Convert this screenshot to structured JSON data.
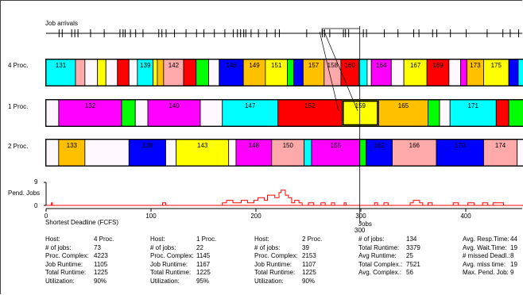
{
  "window": {
    "job_arrivals_label": "Job arrivals",
    "pend_jobs_label": "Pend. Jobs",
    "pend_y_max_label": "9",
    "pend_y_min_label": "0",
    "algorithm_label": "Shortest Deadline (FCFS)",
    "x_axis_unit_label": "Jobs",
    "cursor_value_label": "300"
  },
  "axis": {
    "ticks": [
      {
        "value": 0,
        "label": "0"
      },
      {
        "value": 100,
        "label": "100"
      },
      {
        "value": 200,
        "label": "200"
      },
      {
        "value": 300,
        "label": "300"
      },
      {
        "value": 400,
        "label": "400"
      }
    ],
    "view_range": [
      0,
      458
    ]
  },
  "arrivals": [
    12,
    15,
    24,
    27,
    30,
    42,
    55,
    70,
    73,
    75,
    80,
    85,
    92,
    107,
    110,
    114,
    122,
    133,
    143,
    150,
    160,
    170,
    178,
    182,
    185,
    188,
    190,
    195,
    202,
    210,
    218,
    222,
    248,
    263,
    265,
    270,
    283,
    285,
    288,
    302,
    305,
    322,
    335,
    350,
    355,
    368,
    372,
    385,
    400,
    420,
    435,
    442,
    450
  ],
  "selection": {
    "start": 291,
    "end": 297,
    "cursor": 299
  },
  "rows": [
    {
      "label": "4 Proc.",
      "jobs": [
        {
          "id": "131",
          "start": 0,
          "end": 28,
          "color": "#00ffff",
          "show_id": true
        },
        {
          "id": "",
          "start": 28,
          "end": 37,
          "color": "#ffaaaa",
          "show_id": false
        },
        {
          "id": "",
          "start": 37,
          "end": 49,
          "color": "#fff8ff",
          "show_id": false
        },
        {
          "id": "",
          "start": 49,
          "end": 57,
          "color": "#ffff00",
          "show_id": false
        },
        {
          "id": "",
          "start": 57,
          "end": 68,
          "color": "#fff8ff",
          "show_id": false
        },
        {
          "id": "",
          "start": 68,
          "end": 79,
          "color": "#ff0000",
          "show_id": false
        },
        {
          "id": "",
          "start": 79,
          "end": 87,
          "color": "#fff8ff",
          "show_id": false
        },
        {
          "id": "139",
          "start": 87,
          "end": 102,
          "color": "#00ffff",
          "show_id": true
        },
        {
          "id": "",
          "start": 102,
          "end": 106,
          "color": "#ffff00",
          "show_id": false
        },
        {
          "id": "",
          "start": 106,
          "end": 112,
          "color": "#ffc000",
          "show_id": false
        },
        {
          "id": "142",
          "start": 112,
          "end": 131,
          "color": "#ffaaaa",
          "show_id": true
        },
        {
          "id": "",
          "start": 131,
          "end": 143,
          "color": "#ff0000",
          "show_id": false
        },
        {
          "id": "",
          "start": 143,
          "end": 155,
          "color": "#00ff00",
          "show_id": false
        },
        {
          "id": "",
          "start": 155,
          "end": 165,
          "color": "#fff8ff",
          "show_id": false
        },
        {
          "id": "146",
          "start": 165,
          "end": 188,
          "color": "#0000ff",
          "show_id": true
        },
        {
          "id": "149",
          "start": 188,
          "end": 209,
          "color": "#ffc000",
          "show_id": true
        },
        {
          "id": "151",
          "start": 209,
          "end": 230,
          "color": "#ffff00",
          "show_id": true
        },
        {
          "id": "",
          "start": 230,
          "end": 236,
          "color": "#00ff00",
          "show_id": false
        },
        {
          "id": "",
          "start": 236,
          "end": 245,
          "color": "#0000ff",
          "show_id": false
        },
        {
          "id": "157",
          "start": 245,
          "end": 265,
          "color": "#ffc000",
          "show_id": true
        },
        {
          "id": "158",
          "start": 265,
          "end": 281,
          "color": "#ffaaaa",
          "show_id": true
        },
        {
          "id": "160",
          "start": 281,
          "end": 298,
          "color": "#ff0000",
          "show_id": true
        },
        {
          "id": "",
          "start": 298,
          "end": 306,
          "color": "#00ffff",
          "show_id": false
        },
        {
          "id": "",
          "start": 306,
          "end": 310,
          "color": "#fff8ff",
          "show_id": false
        },
        {
          "id": "164",
          "start": 310,
          "end": 329,
          "color": "#ff00ff",
          "show_id": true
        },
        {
          "id": "",
          "start": 329,
          "end": 341,
          "color": "#fff8ff",
          "show_id": false
        },
        {
          "id": "167",
          "start": 341,
          "end": 363,
          "color": "#ffff00",
          "show_id": true
        },
        {
          "id": "169",
          "start": 363,
          "end": 384,
          "color": "#ff0000",
          "show_id": true
        },
        {
          "id": "",
          "start": 384,
          "end": 395,
          "color": "#fff8ff",
          "show_id": false
        },
        {
          "id": "",
          "start": 395,
          "end": 401,
          "color": "#ff00ff",
          "show_id": false
        },
        {
          "id": "173",
          "start": 401,
          "end": 417,
          "color": "#ffc000",
          "show_id": true
        },
        {
          "id": "175",
          "start": 417,
          "end": 441,
          "color": "#ffff00",
          "show_id": true
        },
        {
          "id": "",
          "start": 441,
          "end": 450,
          "color": "#0000ff",
          "show_id": false
        },
        {
          "id": "",
          "start": 450,
          "end": 458,
          "color": "#00ffff",
          "show_id": false
        }
      ]
    },
    {
      "label": "1 Proc.",
      "jobs": [
        {
          "id": "",
          "start": 0,
          "end": 12,
          "color": "#fff8ff",
          "show_id": false
        },
        {
          "id": "132",
          "start": 12,
          "end": 72,
          "color": "#ff00ff",
          "show_id": true
        },
        {
          "id": "",
          "start": 72,
          "end": 85,
          "color": "#00ff00",
          "show_id": false
        },
        {
          "id": "",
          "start": 85,
          "end": 97,
          "color": "#fff8ff",
          "show_id": false
        },
        {
          "id": "140",
          "start": 97,
          "end": 147,
          "color": "#ff00ff",
          "show_id": true
        },
        {
          "id": "",
          "start": 147,
          "end": 168,
          "color": "#fff8ff",
          "show_id": false
        },
        {
          "id": "147",
          "start": 168,
          "end": 221,
          "color": "#00ffff",
          "show_id": true
        },
        {
          "id": "152",
          "start": 221,
          "end": 282,
          "color": "#ff0000",
          "show_id": true
        },
        {
          "id": "159",
          "start": 282,
          "end": 317,
          "color": "#ffff00",
          "show_id": true,
          "selected": true
        },
        {
          "id": "165",
          "start": 317,
          "end": 364,
          "color": "#ffc000",
          "show_id": true
        },
        {
          "id": "",
          "start": 364,
          "end": 375,
          "color": "#00ff00",
          "show_id": false
        },
        {
          "id": "",
          "start": 375,
          "end": 385,
          "color": "#fff8ff",
          "show_id": false
        },
        {
          "id": "171",
          "start": 385,
          "end": 429,
          "color": "#00ffff",
          "show_id": true
        },
        {
          "id": "",
          "start": 429,
          "end": 441,
          "color": "#ff0000",
          "show_id": false
        },
        {
          "id": "",
          "start": 441,
          "end": 458,
          "color": "#00ff00",
          "show_id": false
        }
      ]
    },
    {
      "label": "2 Proc.",
      "jobs": [
        {
          "id": "",
          "start": 0,
          "end": 12,
          "color": "#fff8ff",
          "show_id": false
        },
        {
          "id": "133",
          "start": 12,
          "end": 37,
          "color": "#ffc000",
          "show_id": true
        },
        {
          "id": "",
          "start": 37,
          "end": 79,
          "color": "#fff8ff",
          "show_id": false
        },
        {
          "id": "138",
          "start": 79,
          "end": 114,
          "color": "#0000ff",
          "show_id": true
        },
        {
          "id": "",
          "start": 114,
          "end": 124,
          "color": "#fff8ff",
          "show_id": false
        },
        {
          "id": "143",
          "start": 124,
          "end": 174,
          "color": "#ffff00",
          "show_id": true
        },
        {
          "id": "",
          "start": 174,
          "end": 181,
          "color": "#fff8ff",
          "show_id": false
        },
        {
          "id": "148",
          "start": 181,
          "end": 215,
          "color": "#ff00ff",
          "show_id": true
        },
        {
          "id": "150",
          "start": 215,
          "end": 246,
          "color": "#ffaaaa",
          "show_id": true
        },
        {
          "id": "",
          "start": 246,
          "end": 253,
          "color": "#00ffff",
          "show_id": false
        },
        {
          "id": "155",
          "start": 253,
          "end": 299,
          "color": "#ff00ff",
          "show_id": true
        },
        {
          "id": "",
          "start": 299,
          "end": 305,
          "color": "#00ff00",
          "show_id": false
        },
        {
          "id": "162",
          "start": 305,
          "end": 330,
          "color": "#0000ff",
          "show_id": true
        },
        {
          "id": "166",
          "start": 330,
          "end": 372,
          "color": "#ffaaaa",
          "show_id": true
        },
        {
          "id": "170",
          "start": 372,
          "end": 417,
          "color": "#0000ff",
          "show_id": true
        },
        {
          "id": "174",
          "start": 417,
          "end": 449,
          "color": "#ffaaaa",
          "show_id": true
        },
        {
          "id": "",
          "start": 449,
          "end": 458,
          "color": "#fff8ff",
          "show_id": false
        }
      ]
    }
  ],
  "pending_series": [
    [
      0,
      0
    ],
    [
      5,
      0
    ],
    [
      5,
      1
    ],
    [
      6,
      1
    ],
    [
      6,
      0
    ],
    [
      111,
      0
    ],
    [
      111,
      1
    ],
    [
      114,
      1
    ],
    [
      114,
      0
    ],
    [
      168,
      0
    ],
    [
      168,
      1
    ],
    [
      172,
      1
    ],
    [
      172,
      2
    ],
    [
      178,
      2
    ],
    [
      178,
      1
    ],
    [
      186,
      1
    ],
    [
      186,
      2
    ],
    [
      192,
      2
    ],
    [
      192,
      1
    ],
    [
      198,
      1
    ],
    [
      198,
      2
    ],
    [
      202,
      2
    ],
    [
      202,
      3
    ],
    [
      208,
      3
    ],
    [
      208,
      2
    ],
    [
      211,
      2
    ],
    [
      211,
      4
    ],
    [
      218,
      4
    ],
    [
      218,
      3
    ],
    [
      222,
      3
    ],
    [
      222,
      5
    ],
    [
      224,
      5
    ],
    [
      224,
      6
    ],
    [
      228,
      6
    ],
    [
      228,
      4
    ],
    [
      231,
      4
    ],
    [
      231,
      3
    ],
    [
      234,
      3
    ],
    [
      234,
      1
    ],
    [
      237,
      1
    ],
    [
      237,
      2
    ],
    [
      241,
      2
    ],
    [
      241,
      1
    ],
    [
      244,
      1
    ],
    [
      244,
      0
    ],
    [
      250,
      0
    ],
    [
      250,
      1
    ],
    [
      255,
      1
    ],
    [
      255,
      0
    ],
    [
      262,
      0
    ],
    [
      262,
      1
    ],
    [
      266,
      1
    ],
    [
      266,
      0
    ],
    [
      272,
      0
    ],
    [
      272,
      1
    ],
    [
      275,
      1
    ],
    [
      275,
      0
    ],
    [
      284,
      0
    ],
    [
      284,
      1
    ],
    [
      286,
      1
    ],
    [
      286,
      0
    ],
    [
      313,
      0
    ],
    [
      313,
      1
    ],
    [
      316,
      1
    ],
    [
      316,
      0
    ],
    [
      322,
      0
    ],
    [
      322,
      1
    ],
    [
      326,
      1
    ],
    [
      326,
      0
    ],
    [
      347,
      0
    ],
    [
      347,
      1
    ],
    [
      350,
      1
    ],
    [
      350,
      2
    ],
    [
      356,
      2
    ],
    [
      356,
      1
    ],
    [
      359,
      1
    ],
    [
      359,
      0
    ],
    [
      364,
      0
    ],
    [
      364,
      1
    ],
    [
      368,
      1
    ],
    [
      368,
      0
    ],
    [
      388,
      0
    ],
    [
      388,
      1
    ],
    [
      393,
      1
    ],
    [
      393,
      0
    ],
    [
      402,
      0
    ],
    [
      402,
      1
    ],
    [
      408,
      1
    ],
    [
      408,
      0
    ],
    [
      416,
      0
    ],
    [
      416,
      1
    ],
    [
      421,
      1
    ],
    [
      421,
      0
    ],
    [
      426,
      0
    ],
    [
      426,
      1
    ],
    [
      436,
      1
    ],
    [
      436,
      0
    ],
    [
      458,
      0
    ]
  ],
  "colors": {
    "pending_line": "#ff0000",
    "frame": "#000000",
    "job_outline": "#000000"
  },
  "stats": {
    "four": {
      "host_label": "Host:",
      "host_value": "4 Proc.",
      "jobs_label": "# of jobs:",
      "jobs_value": "73",
      "complex_label": "Proc. Complex:",
      "complex_value": "4223",
      "runtime_label": "Job Runtime:",
      "runtime_value": "1105",
      "total_label": "Total Runtime:",
      "total_value": "1225",
      "util_label": "Utilization:",
      "util_value": "90%"
    },
    "one": {
      "host_label": "Host:",
      "host_value": "1 Proc.",
      "jobs_label": "# of jobs:",
      "jobs_value": "22",
      "complex_label": "Proc. Complex:",
      "complex_value": "1145",
      "runtime_label": "Job Runtime:",
      "runtime_value": "1167",
      "total_label": "Total Runtime:",
      "total_value": "1225",
      "util_label": "Utilization:",
      "util_value": "95%"
    },
    "two": {
      "host_label": "Host:",
      "host_value": "2 Proc.",
      "jobs_label": "# of jobs:",
      "jobs_value": "39",
      "complex_label": "Proc. Complex:",
      "complex_value": "2153",
      "runtime_label": "Job Runtime:",
      "runtime_value": "1107",
      "total_label": "Total Runtime:",
      "total_value": "1225",
      "util_label": "Utilization:",
      "util_value": "90%"
    },
    "totals": {
      "jobs_label": "# of jobs:",
      "jobs_value": "134",
      "runtime_label": "Total Runtime:",
      "runtime_value": "3379",
      "avg_runtime_label": "Avg Runtime:",
      "avg_runtime_value": "25",
      "complex_label": "Total Complex.:",
      "complex_value": "7521",
      "avg_complex_label": "Avg. Complex.:",
      "avg_complex_value": "56"
    },
    "averages": {
      "resp_label": "Avg. Resp.Time:",
      "resp_value": "44",
      "wait_label": "Avg. Wait.Time:",
      "wait_value": "19",
      "missed_label": "# missed Deadl.:",
      "missed_value": "8",
      "miss_time_label": "Avg. miss time:",
      "miss_time_value": "19",
      "max_pend_label": "Max. Pend. Job:",
      "max_pend_value": "9"
    }
  }
}
